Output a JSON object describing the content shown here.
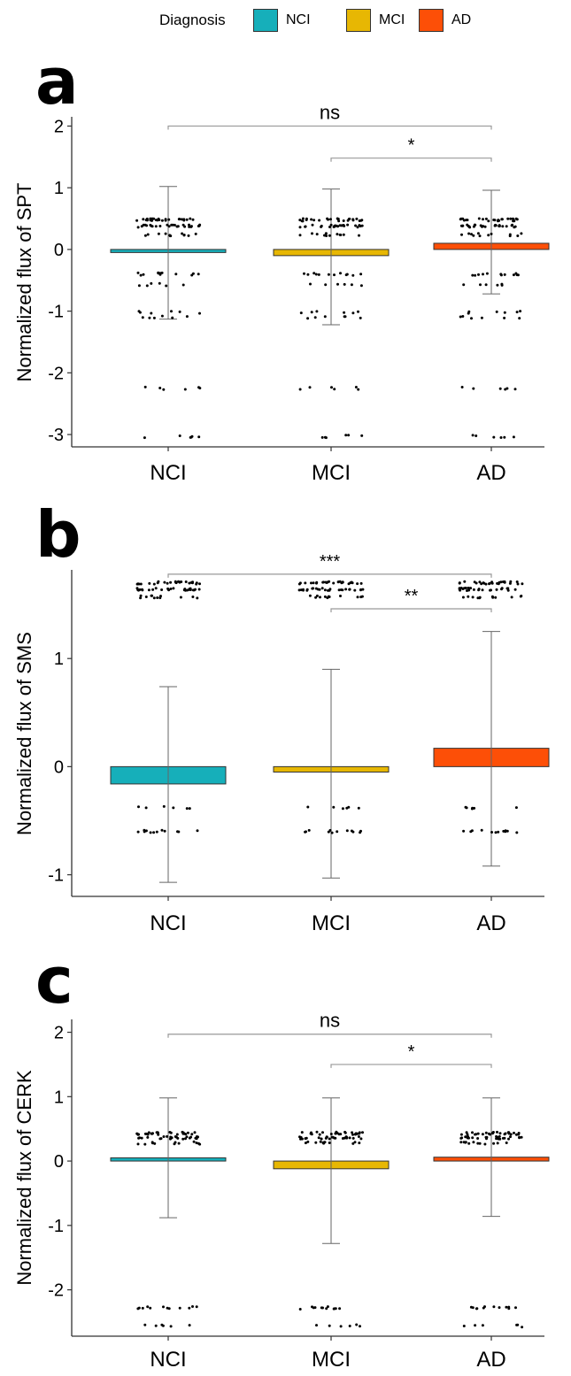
{
  "legend": {
    "title": "Diagnosis",
    "items": [
      {
        "label": "NCI",
        "color": "#16AFBA"
      },
      {
        "label": "MCI",
        "color": "#E7B703"
      },
      {
        "label": "AD",
        "color": "#FD4F07"
      }
    ]
  },
  "chart_data": [
    {
      "panel_letter": "a",
      "type": "bar",
      "categories": [
        "NCI",
        "MCI",
        "AD"
      ],
      "values": [
        -0.05,
        -0.1,
        0.1
      ],
      "error_bars": [
        [
          -1.13,
          1.02
        ],
        [
          -1.22,
          0.98
        ],
        [
          -0.72,
          0.96
        ]
      ],
      "ylabel": "Normalized flux of SPT",
      "ylim": [
        -3.2,
        2.15
      ],
      "y_ticks": [
        2,
        1,
        0,
        -1,
        -2,
        -3
      ],
      "point_levels": [
        0.48,
        0.38,
        0.24,
        -0.4,
        -0.57,
        -1.02,
        -1.1,
        -2.25,
        -3.03
      ],
      "significance": [
        {
          "from": "NCI",
          "to": "AD",
          "label": "ns",
          "y": 2.0
        },
        {
          "from": "MCI",
          "to": "AD",
          "label": "*",
          "y": 1.48
        }
      ],
      "colors": [
        "#16AFBA",
        "#E7B703",
        "#FD4F07"
      ],
      "grid": false
    },
    {
      "panel_letter": "b",
      "type": "bar",
      "categories": [
        "NCI",
        "MCI",
        "AD"
      ],
      "values": [
        -0.16,
        -0.05,
        0.17
      ],
      "error_bars": [
        [
          -1.07,
          0.74
        ],
        [
          -1.03,
          0.9
        ],
        [
          -0.92,
          1.25
        ]
      ],
      "ylabel": "Normalized flux of SMS",
      "ylim": [
        -1.2,
        1.82
      ],
      "y_ticks": [
        1,
        0,
        -1
      ],
      "point_levels": [
        1.7,
        1.64,
        1.57,
        -0.6,
        -0.38
      ],
      "significance": [
        {
          "from": "NCI",
          "to": "AD",
          "label": "***",
          "y": 1.78
        },
        {
          "from": "MCI",
          "to": "AD",
          "label": "**",
          "y": 1.46
        }
      ],
      "colors": [
        "#16AFBA",
        "#E7B703",
        "#FD4F07"
      ],
      "grid": false
    },
    {
      "panel_letter": "c",
      "type": "bar",
      "categories": [
        "NCI",
        "MCI",
        "AD"
      ],
      "values": [
        0.05,
        -0.12,
        0.06
      ],
      "error_bars": [
        [
          -0.88,
          0.98
        ],
        [
          -1.28,
          0.98
        ],
        [
          -0.86,
          0.98
        ]
      ],
      "ylabel": "Normalized flux of CERK",
      "ylim": [
        -2.72,
        2.2
      ],
      "y_ticks": [
        2,
        1,
        0,
        -1,
        -2
      ],
      "point_levels": [
        0.43,
        0.36,
        0.28,
        -2.28,
        -2.56
      ],
      "significance": [
        {
          "from": "NCI",
          "to": "AD",
          "label": "ns",
          "y": 1.97
        },
        {
          "from": "MCI",
          "to": "AD",
          "label": "*",
          "y": 1.5
        }
      ],
      "colors": [
        "#16AFBA",
        "#E7B703",
        "#FD4F07"
      ],
      "grid": false
    }
  ]
}
